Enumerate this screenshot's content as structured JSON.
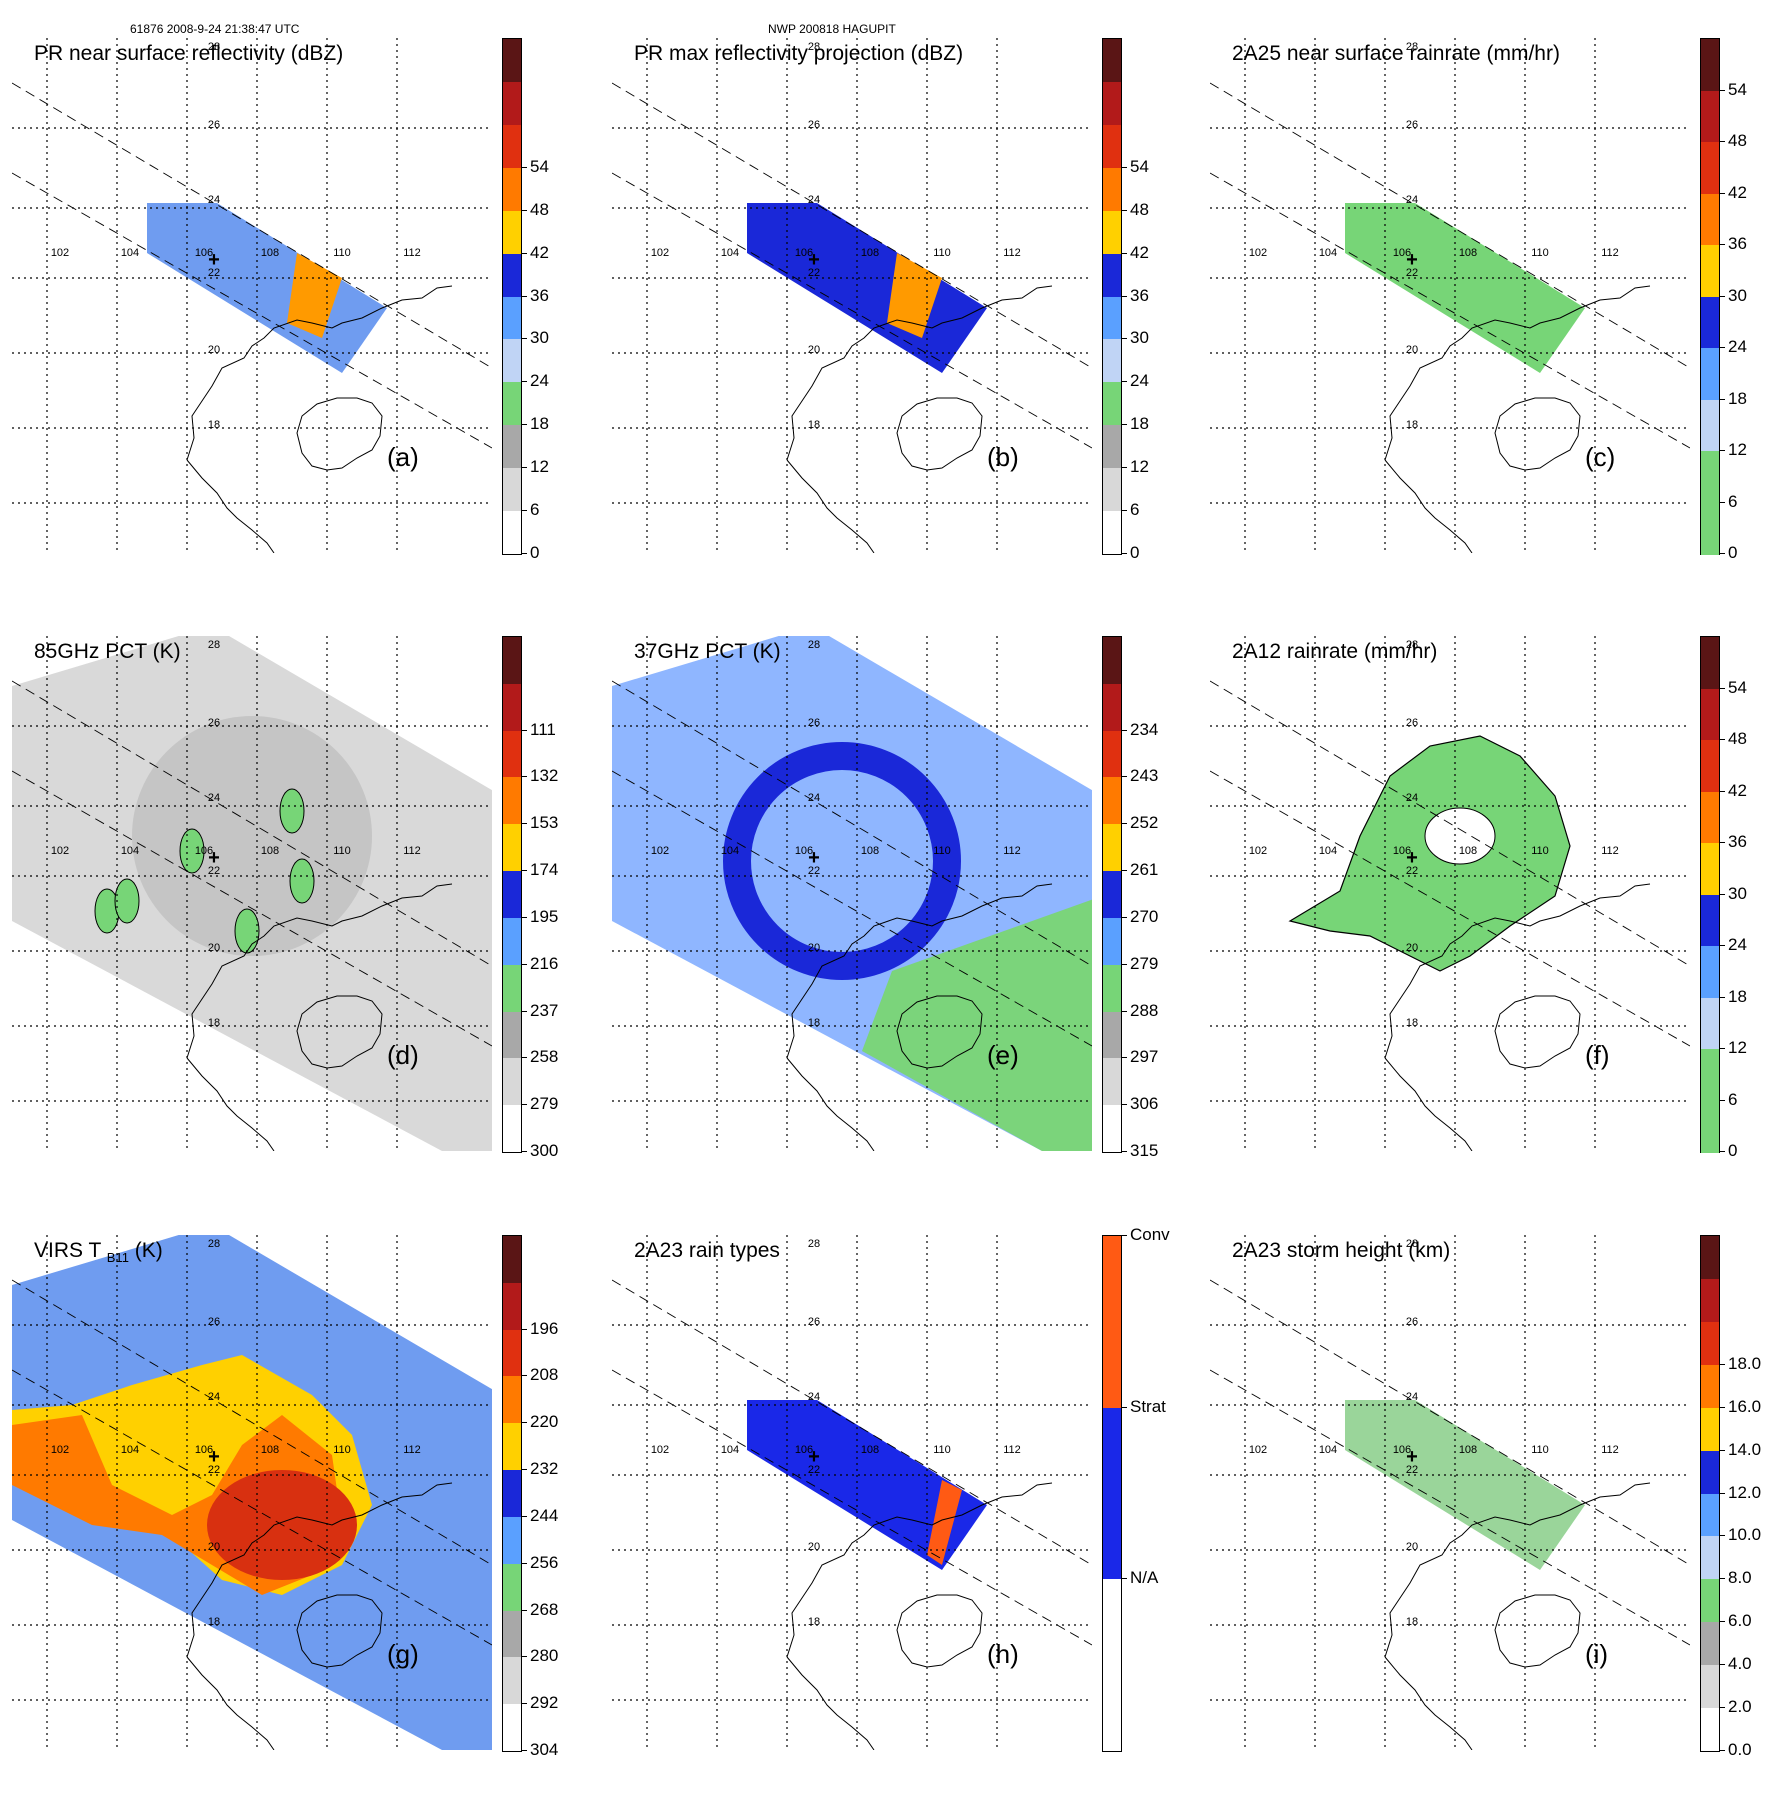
{
  "header": {
    "left": "61876 2008-9-24 21:38:47 UTC",
    "center": "NWP 200818 HAGUPIT"
  },
  "grid": {
    "lon_labels": [
      "102",
      "104",
      "106",
      "108",
      "110",
      "112"
    ],
    "lat_labels": [
      "28",
      "26",
      "24",
      "22",
      "20",
      "18"
    ]
  },
  "chart_data": [
    {
      "type": "heatmap",
      "id": "a",
      "title": "PR near surface reflectivity (dBZ)",
      "letter": "(a)",
      "colorbar_ticks": [
        "54",
        "48",
        "42",
        "36",
        "30",
        "24",
        "18",
        "12",
        "6",
        "0"
      ],
      "colors": [
        "#5a1515",
        "#b21a1a",
        "#e03010",
        "#ff7a00",
        "#ffd000",
        "#1a28d8",
        "#5aa0ff",
        "#c0d4f5",
        "#77d577",
        "#a8a8a8",
        "#d8d8d8",
        "#ffffff"
      ]
    },
    {
      "type": "heatmap",
      "id": "b",
      "title": "PR max reflectivity projection (dBZ)",
      "letter": "(b)",
      "colorbar_ticks": [
        "54",
        "48",
        "42",
        "36",
        "30",
        "24",
        "18",
        "12",
        "6",
        "0"
      ],
      "colors": [
        "#5a1515",
        "#b21a1a",
        "#e03010",
        "#ff7a00",
        "#ffd000",
        "#1a28d8",
        "#5aa0ff",
        "#c0d4f5",
        "#77d577",
        "#a8a8a8",
        "#d8d8d8",
        "#ffffff"
      ]
    },
    {
      "type": "heatmap",
      "id": "c",
      "title": "2A25 near surface rainrate (mm/hr)",
      "letter": "(c)",
      "colorbar_ticks": [
        "54",
        "48",
        "42",
        "36",
        "30",
        "24",
        "18",
        "12",
        "6",
        "0"
      ],
      "colors": [
        "#5a1515",
        "#b21a1a",
        "#e03010",
        "#ff7a00",
        "#ffd000",
        "#1a28d8",
        "#5aa0ff",
        "#c0d4f5",
        "#77d577",
        "#77d577"
      ]
    },
    {
      "type": "heatmap",
      "id": "d",
      "title": "85GHz PCT (K)",
      "letter": "(d)",
      "colorbar_ticks": [
        "111",
        "132",
        "153",
        "174",
        "195",
        "216",
        "237",
        "258",
        "279",
        "300"
      ],
      "colors": [
        "#5a1515",
        "#b21a1a",
        "#e03010",
        "#ff7a00",
        "#ffd000",
        "#1a28d8",
        "#5aa0ff",
        "#77d577",
        "#a8a8a8",
        "#d8d8d8",
        "#ffffff"
      ]
    },
    {
      "type": "heatmap",
      "id": "e",
      "title": "37GHz PCT (K)",
      "letter": "(e)",
      "colorbar_ticks": [
        "234",
        "243",
        "252",
        "261",
        "270",
        "279",
        "288",
        "297",
        "306",
        "315"
      ],
      "colors": [
        "#5a1515",
        "#b21a1a",
        "#e03010",
        "#ff7a00",
        "#ffd000",
        "#1a28d8",
        "#5aa0ff",
        "#77d577",
        "#a8a8a8",
        "#d8d8d8",
        "#ffffff"
      ]
    },
    {
      "type": "heatmap",
      "id": "f",
      "title": "2A12 rainrate (mm/hr)",
      "letter": "(f)",
      "colorbar_ticks": [
        "54",
        "48",
        "42",
        "36",
        "30",
        "24",
        "18",
        "12",
        "6",
        "0"
      ],
      "colors": [
        "#5a1515",
        "#b21a1a",
        "#e03010",
        "#ff7a00",
        "#ffd000",
        "#1a28d8",
        "#5aa0ff",
        "#c0d4f5",
        "#77d577",
        "#77d577"
      ]
    },
    {
      "type": "heatmap",
      "id": "g",
      "title": "VIRS T",
      "title_sub": "B11",
      "title_tail": "(K)",
      "letter": "(g)",
      "colorbar_ticks": [
        "196",
        "208",
        "220",
        "232",
        "244",
        "256",
        "268",
        "280",
        "292",
        "304"
      ],
      "colors": [
        "#5a1515",
        "#b21a1a",
        "#e03010",
        "#ff7a00",
        "#ffd000",
        "#1a28d8",
        "#5aa0ff",
        "#77d577",
        "#a8a8a8",
        "#d8d8d8",
        "#ffffff"
      ]
    },
    {
      "type": "heatmap",
      "id": "h",
      "title": "2A23 rain types",
      "letter": "(h)",
      "colorbar_ticks": [
        "Conv",
        "Strat",
        "N/A"
      ],
      "colors": [
        "#ff5a14",
        "#1a28e8",
        "#ffffff"
      ]
    },
    {
      "type": "heatmap",
      "id": "i",
      "title": "2A23 storm height (km)",
      "letter": "(i)",
      "colorbar_ticks": [
        "18.0",
        "16.0",
        "14.0",
        "12.0",
        "10.0",
        "8.0",
        "6.0",
        "4.0",
        "2.0",
        "0.0"
      ],
      "colors": [
        "#5a1515",
        "#b21a1a",
        "#e03010",
        "#ff7a00",
        "#ffd000",
        "#1a28d8",
        "#5aa0ff",
        "#c0d4f5",
        "#77d577",
        "#a8a8a8",
        "#d8d8d8",
        "#ffffff"
      ]
    }
  ]
}
